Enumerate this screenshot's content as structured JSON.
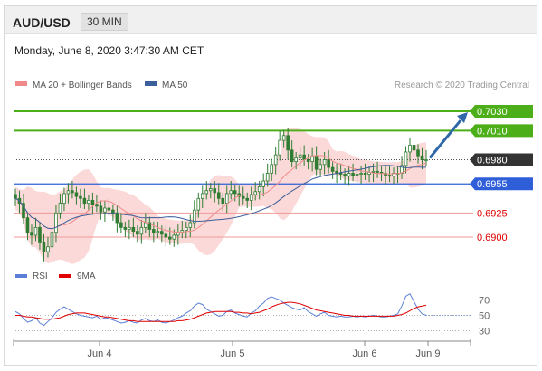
{
  "header": {
    "symbol": "AUD/USD",
    "timeframe": "30 MIN"
  },
  "datetime": "Monday, June 8, 2020 3:47:30 AM CET",
  "copyright": "Research © 2020 Trading Central",
  "colors": {
    "ma20": "#f08a8a",
    "bollinger_fill": "#fbd0d0",
    "ma50": "#3a5f9a",
    "candle": "#2e7d32",
    "green_line": "#4caf1a",
    "blue_line": "#2f5fd8",
    "red_line": "#ef9a9a",
    "red_label": "#e00000",
    "arrow": "#2f67a8",
    "rsi": "#5b7fd6",
    "rsi_ma": "#e00000"
  },
  "chart_data": [
    {
      "type": "candlestick",
      "legend": [
        "MA 20 + Bollinger Bands",
        "MA 50"
      ],
      "legend_placement": "top-left",
      "x_tick_labels": [
        "Jun 4",
        "Jun 5",
        "Jun 6",
        "Jun 9"
      ],
      "ylim": [
        0.6872,
        0.7045
      ],
      "levels": [
        {
          "value": 0.703,
          "label": "0.7030",
          "style": "green-box"
        },
        {
          "value": 0.701,
          "label": "0.7010",
          "style": "green-box"
        },
        {
          "value": 0.698,
          "label": "0.6980",
          "style": "current-price"
        },
        {
          "value": 0.6955,
          "label": "0.6955",
          "style": "blue-box"
        },
        {
          "value": 0.6925,
          "label": "0.6925",
          "style": "red-text"
        },
        {
          "value": 0.69,
          "label": "0.6900",
          "style": "red-text"
        }
      ],
      "last_price": 0.698,
      "arrow": {
        "from": 0.698,
        "to": 0.703,
        "direction": "up"
      },
      "close_values": [
        0.694,
        0.6935,
        0.692,
        0.6905,
        0.6902,
        0.691,
        0.6895,
        0.6885,
        0.689,
        0.6905,
        0.6925,
        0.6935,
        0.6945,
        0.6948,
        0.6946,
        0.6942,
        0.694,
        0.6935,
        0.6938,
        0.6934,
        0.6932,
        0.6926,
        0.693,
        0.6928,
        0.6925,
        0.6915,
        0.691,
        0.6908,
        0.691,
        0.6906,
        0.6903,
        0.691,
        0.6915,
        0.6908,
        0.6905,
        0.6906,
        0.6903,
        0.69,
        0.6898,
        0.6902,
        0.6905,
        0.6907,
        0.691,
        0.6915,
        0.6928,
        0.694,
        0.6945,
        0.6948,
        0.695,
        0.6946,
        0.694,
        0.6935,
        0.6945,
        0.6948,
        0.6945,
        0.6942,
        0.694,
        0.6938,
        0.6944,
        0.6947,
        0.6952,
        0.6958,
        0.6966,
        0.6975,
        0.6985,
        0.7,
        0.7005,
        0.699,
        0.6978,
        0.6982,
        0.6985,
        0.698,
        0.6978,
        0.6984,
        0.697,
        0.6975,
        0.698,
        0.6972,
        0.6968,
        0.6966,
        0.6965,
        0.6963,
        0.6966,
        0.6964,
        0.6965,
        0.6966,
        0.6965,
        0.6967,
        0.6968,
        0.6967,
        0.6966,
        0.6964,
        0.6963,
        0.6966,
        0.6966,
        0.6974,
        0.6988,
        0.6995,
        0.699,
        0.6984,
        0.698,
        0.698
      ]
    },
    {
      "type": "line",
      "legend": [
        "RSI",
        "9MA"
      ],
      "legend_placement": "top-left",
      "y_tick_labels": [
        "70",
        "50",
        "30"
      ],
      "ylim": [
        20,
        80
      ],
      "series": [
        {
          "name": "RSI",
          "values": [
            55,
            52,
            46,
            41,
            43,
            47,
            40,
            37,
            42,
            47,
            54,
            58,
            61,
            58,
            55,
            52,
            50,
            49,
            48,
            47,
            49,
            45,
            47,
            46,
            44,
            42,
            40,
            41,
            43,
            41,
            40,
            44,
            46,
            43,
            42,
            44,
            41,
            40,
            42,
            44,
            47,
            49,
            53,
            56,
            62,
            66,
            64,
            58,
            55,
            52,
            49,
            50,
            55,
            57,
            53,
            51,
            49,
            48,
            53,
            56,
            62,
            66,
            72,
            74,
            72,
            70,
            66,
            63,
            60,
            58,
            57,
            60,
            55,
            52,
            49,
            52,
            54,
            50,
            49,
            48,
            49,
            48,
            48,
            49,
            48,
            49,
            48,
            49,
            50,
            49,
            48,
            48,
            49,
            50,
            52,
            62,
            75,
            78,
            68,
            58,
            52,
            50
          ]
        },
        {
          "name": "9MA",
          "values": [
            50,
            50,
            49,
            48,
            48,
            47,
            46,
            45,
            45,
            45,
            46,
            47,
            49,
            51,
            52,
            53,
            53,
            53,
            52,
            51,
            50,
            49,
            48,
            48,
            47,
            46,
            45,
            44,
            43,
            43,
            42,
            42,
            42,
            42,
            42,
            42,
            42,
            42,
            42,
            42,
            43,
            43,
            44,
            45,
            47,
            49,
            51,
            53,
            54,
            55,
            55,
            55,
            55,
            55,
            54,
            54,
            53,
            53,
            52,
            53,
            54,
            56,
            58,
            61,
            63,
            65,
            66,
            67,
            67,
            66,
            65,
            63,
            61,
            59,
            57,
            56,
            55,
            54,
            53,
            52,
            51,
            50,
            50,
            49,
            49,
            49,
            49,
            49,
            49,
            49,
            49,
            49,
            49,
            49,
            50,
            51,
            53,
            56,
            59,
            61,
            62,
            63
          ]
        }
      ]
    }
  ]
}
